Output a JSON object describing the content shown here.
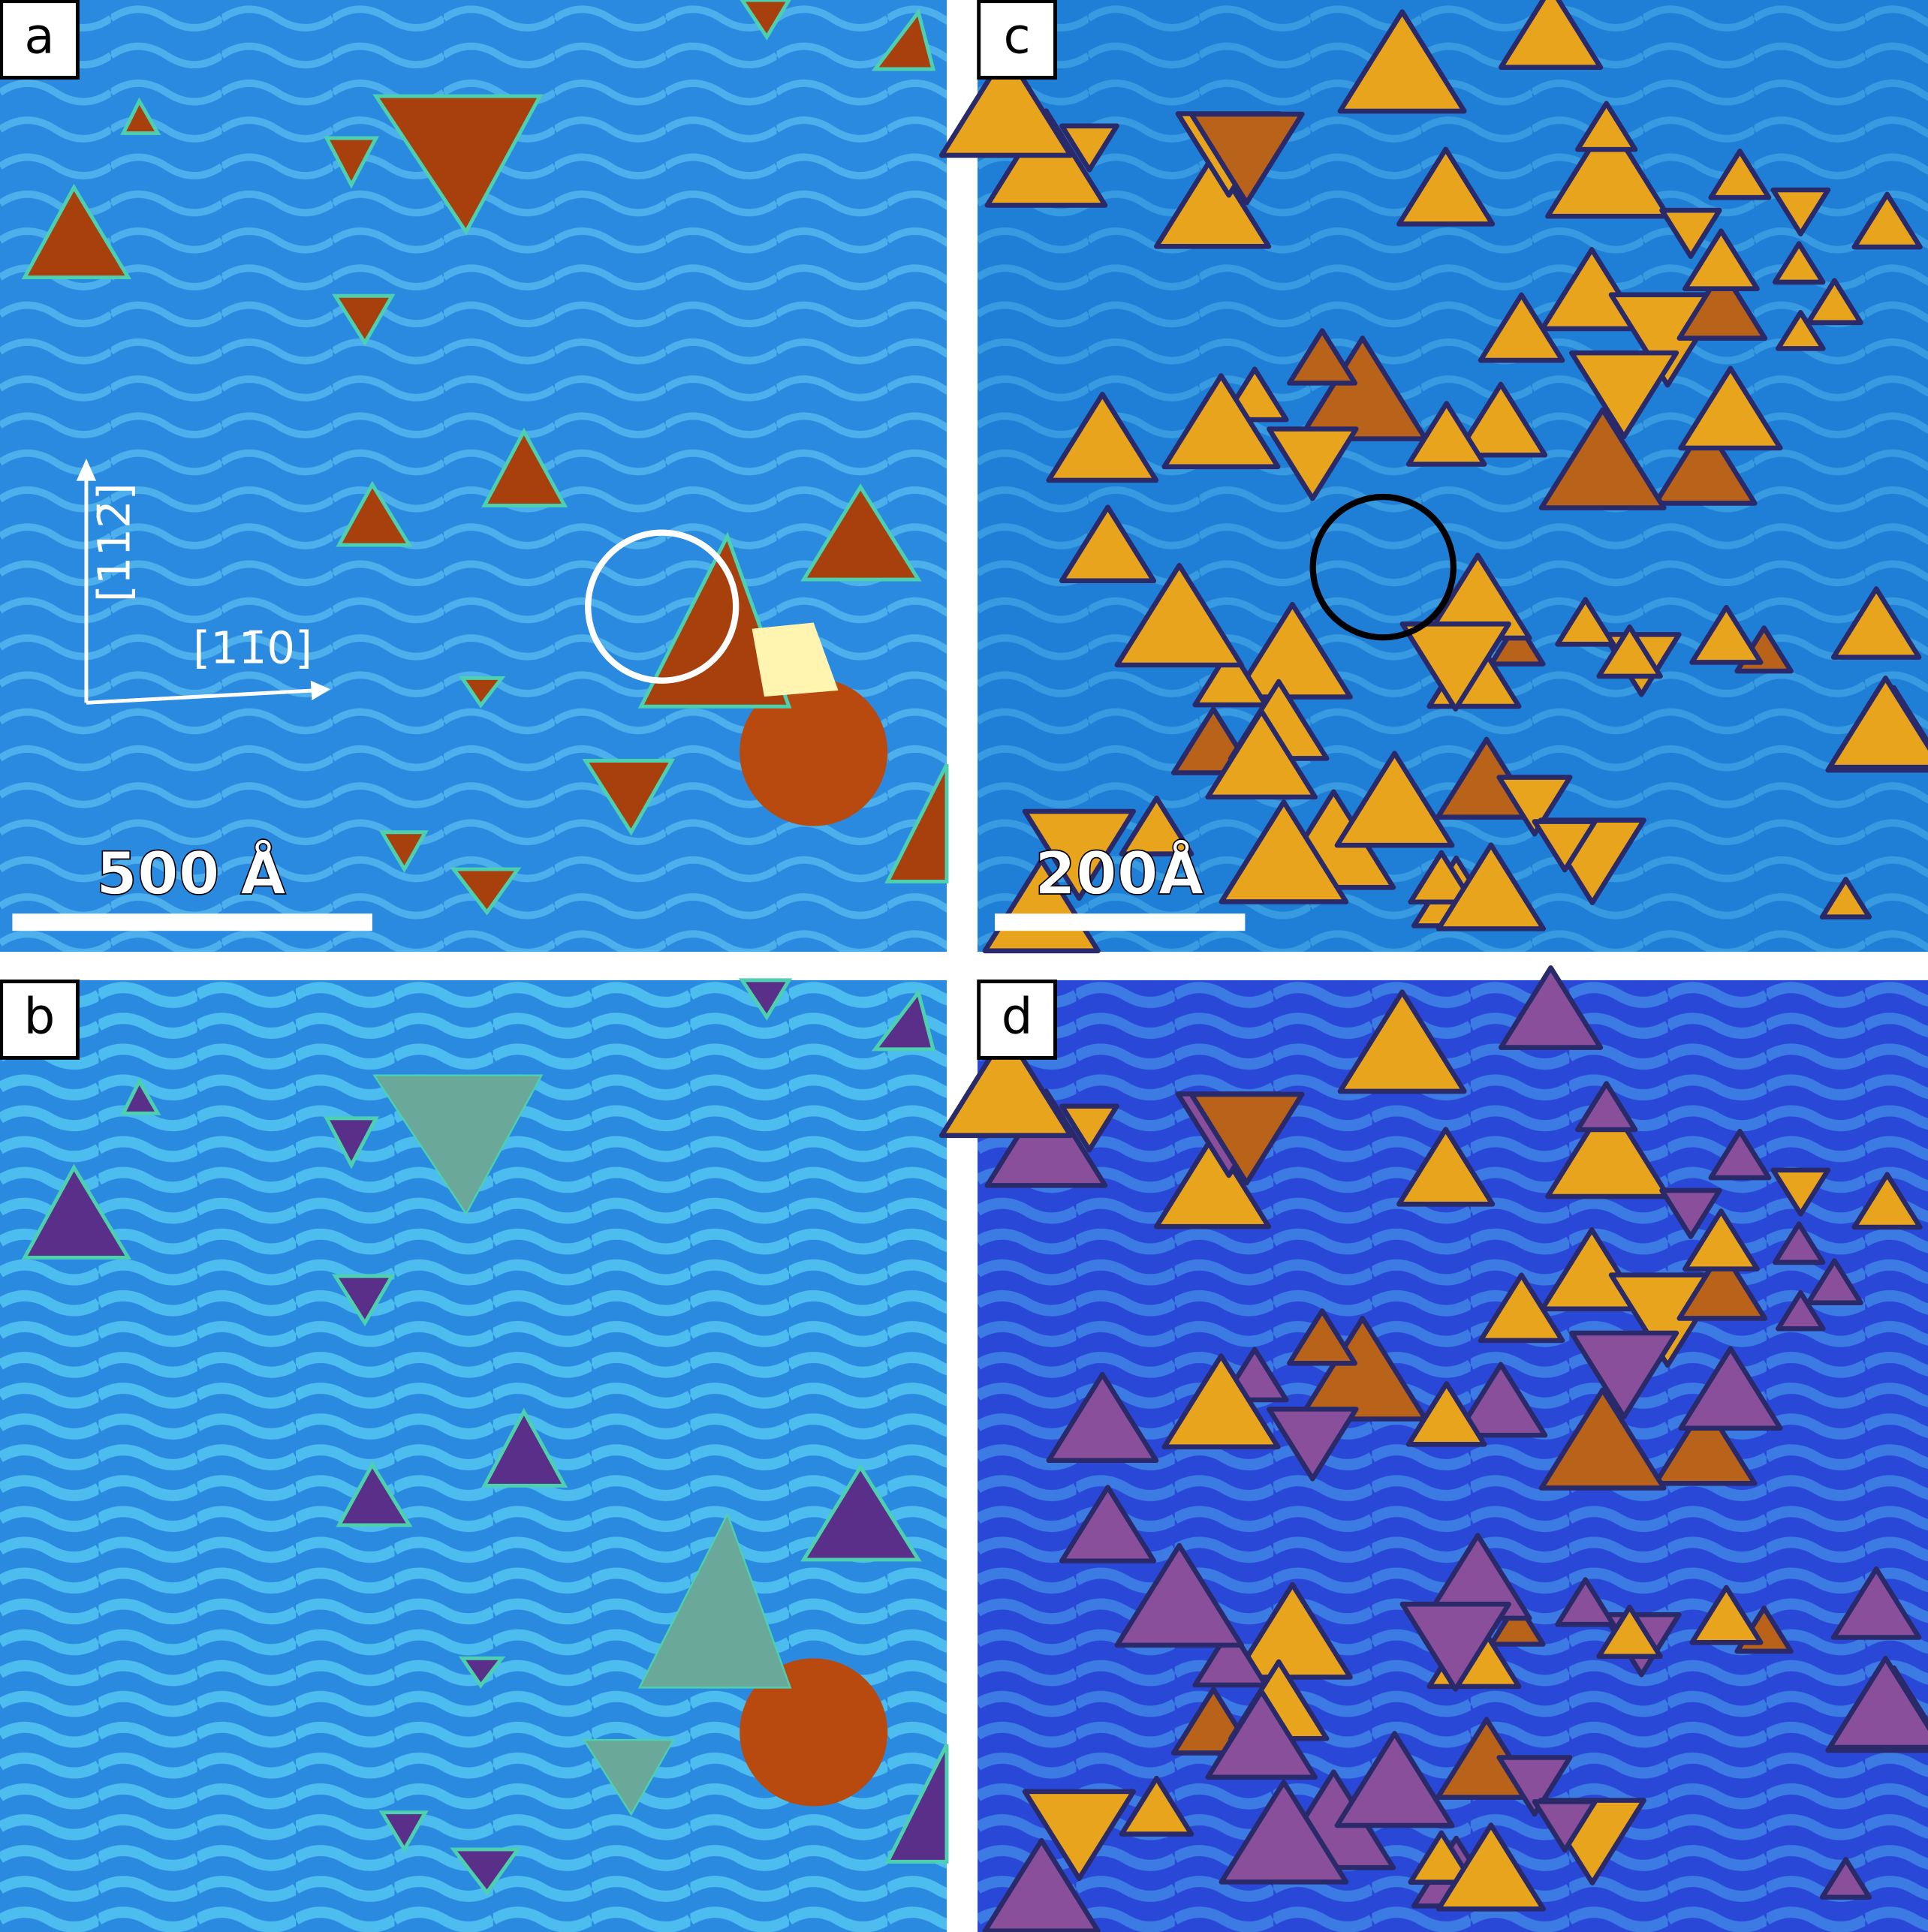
{
  "panels": [
    {
      "label": "a",
      "scale_bar": "500 Å",
      "directions": [
        "[112̄]",
        "[11̄0]"
      ]
    },
    {
      "label": "b"
    },
    {
      "label": "c",
      "scale_bar": "200Å"
    },
    {
      "label": "d"
    }
  ]
}
